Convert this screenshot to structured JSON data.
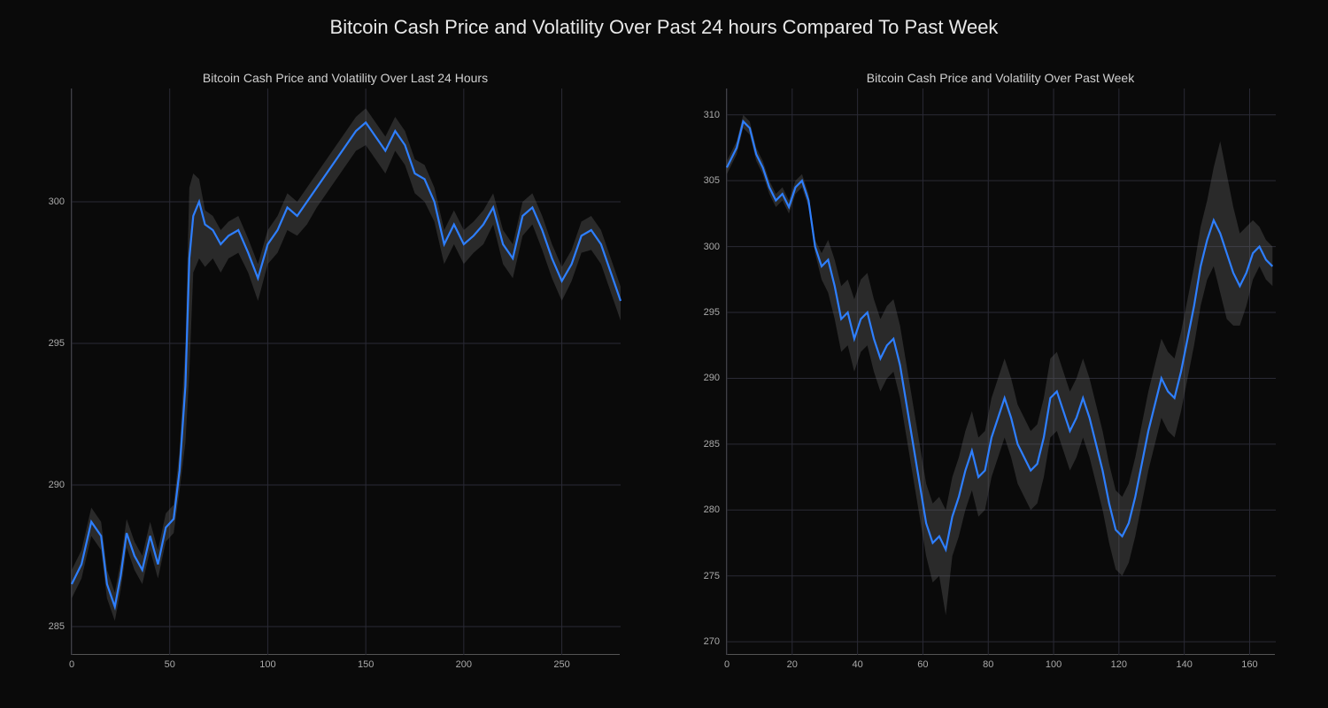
{
  "suptitle": "Bitcoin Cash Price and Volatility Over Past 24 hours Compared To Past Week",
  "suptitle_fontsize": 22,
  "background_color": "#0a0a0a",
  "grid_color": "#2a2a35",
  "line_color": "#2e7fff",
  "band_color": "#666666",
  "band_opacity": 0.35,
  "tick_fontsize": 11,
  "tick_color": "#aaaaaa",
  "left_chart": {
    "type": "line",
    "title": "Bitcoin Cash Price and Volatility Over Last 24 Hours",
    "title_fontsize": 14,
    "xlim": [
      0,
      280
    ],
    "ylim": [
      284,
      304
    ],
    "xticks": [
      0,
      50,
      100,
      150,
      200,
      250
    ],
    "yticks": [
      285,
      290,
      295,
      300
    ],
    "line_width": 2.2,
    "x": [
      0,
      5,
      10,
      15,
      18,
      22,
      25,
      28,
      32,
      36,
      40,
      44,
      48,
      52,
      55,
      58,
      60,
      62,
      65,
      68,
      72,
      76,
      80,
      85,
      90,
      95,
      100,
      105,
      110,
      115,
      120,
      125,
      130,
      135,
      140,
      145,
      150,
      155,
      160,
      165,
      170,
      175,
      180,
      185,
      190,
      195,
      200,
      205,
      210,
      215,
      220,
      225,
      230,
      235,
      240,
      245,
      250,
      255,
      260,
      265,
      270,
      275,
      280
    ],
    "price": [
      286.5,
      287.2,
      288.7,
      288.2,
      286.5,
      285.7,
      286.8,
      288.3,
      287.5,
      287.0,
      288.2,
      287.2,
      288.5,
      288.8,
      290.5,
      293.5,
      298.0,
      299.5,
      300.0,
      299.2,
      299.0,
      298.5,
      298.8,
      299.0,
      298.2,
      297.3,
      298.5,
      299.0,
      299.8,
      299.5,
      300.0,
      300.5,
      301.0,
      301.5,
      302.0,
      302.5,
      302.8,
      302.3,
      301.8,
      302.5,
      302.0,
      301.0,
      300.8,
      300.0,
      298.5,
      299.2,
      298.5,
      298.8,
      299.2,
      299.8,
      298.5,
      298.0,
      299.5,
      299.8,
      299.0,
      298.0,
      297.2,
      297.8,
      298.8,
      299.0,
      298.5,
      297.5,
      296.5
    ],
    "band_upper": [
      287.0,
      287.7,
      289.2,
      288.7,
      287.0,
      286.2,
      287.3,
      288.8,
      288.0,
      287.5,
      288.7,
      287.7,
      289.0,
      289.3,
      291.2,
      295.0,
      300.5,
      301.0,
      300.8,
      299.7,
      299.5,
      299.0,
      299.3,
      299.5,
      298.7,
      297.8,
      299.0,
      299.5,
      300.3,
      300.0,
      300.5,
      301.0,
      301.5,
      302.0,
      302.5,
      303.0,
      303.3,
      302.8,
      302.3,
      303.0,
      302.5,
      301.5,
      301.3,
      300.5,
      299.0,
      299.7,
      299.0,
      299.3,
      299.7,
      300.3,
      299.0,
      298.5,
      300.0,
      300.3,
      299.5,
      298.5,
      297.7,
      298.3,
      299.3,
      299.5,
      299.0,
      298.0,
      297.0
    ],
    "band_lower": [
      286.0,
      286.7,
      288.2,
      287.7,
      286.0,
      285.2,
      286.3,
      287.8,
      287.0,
      286.5,
      287.7,
      286.7,
      288.0,
      288.3,
      289.8,
      291.5,
      294.0,
      297.5,
      298.0,
      297.7,
      298.0,
      297.5,
      298.0,
      298.2,
      297.5,
      296.5,
      297.8,
      298.2,
      299.0,
      298.8,
      299.2,
      299.8,
      300.3,
      300.8,
      301.3,
      301.8,
      302.0,
      301.5,
      301.0,
      301.8,
      301.3,
      300.3,
      300.0,
      299.3,
      297.8,
      298.5,
      297.8,
      298.2,
      298.5,
      299.2,
      297.8,
      297.3,
      298.8,
      299.2,
      298.3,
      297.3,
      296.5,
      297.2,
      298.2,
      298.3,
      297.8,
      296.8,
      295.8
    ]
  },
  "right_chart": {
    "type": "line",
    "title": "Bitcoin Cash Price and Volatility Over Past Week",
    "title_fontsize": 14,
    "xlim": [
      0,
      168
    ],
    "ylim": [
      269,
      312
    ],
    "xticks": [
      0,
      20,
      40,
      60,
      80,
      100,
      120,
      140,
      160
    ],
    "yticks": [
      270,
      275,
      280,
      285,
      290,
      295,
      300,
      305,
      310
    ],
    "line_width": 2.2,
    "x": [
      0,
      3,
      5,
      7,
      9,
      11,
      13,
      15,
      17,
      19,
      21,
      23,
      25,
      27,
      29,
      31,
      33,
      35,
      37,
      39,
      41,
      43,
      45,
      47,
      49,
      51,
      53,
      55,
      57,
      59,
      61,
      63,
      65,
      67,
      69,
      71,
      73,
      75,
      77,
      79,
      81,
      83,
      85,
      87,
      89,
      91,
      93,
      95,
      97,
      99,
      101,
      103,
      105,
      107,
      109,
      111,
      113,
      115,
      117,
      119,
      121,
      123,
      125,
      127,
      129,
      131,
      133,
      135,
      137,
      139,
      141,
      143,
      145,
      147,
      149,
      151,
      153,
      155,
      157,
      159,
      161,
      163,
      165,
      167
    ],
    "price": [
      306.0,
      307.5,
      309.5,
      309.0,
      307.0,
      306.0,
      304.5,
      303.5,
      304.0,
      303.0,
      304.5,
      305.0,
      303.5,
      300.0,
      298.5,
      299.0,
      297.0,
      294.5,
      295.0,
      293.0,
      294.5,
      295.0,
      293.0,
      291.5,
      292.5,
      293.0,
      291.0,
      288.0,
      285.0,
      282.0,
      279.0,
      277.5,
      278.0,
      277.0,
      279.5,
      281.0,
      283.0,
      284.5,
      282.5,
      283.0,
      285.5,
      287.0,
      288.5,
      287.0,
      285.0,
      284.0,
      283.0,
      283.5,
      285.5,
      288.5,
      289.0,
      287.5,
      286.0,
      287.0,
      288.5,
      287.0,
      285.0,
      283.0,
      280.5,
      278.5,
      278.0,
      279.0,
      281.0,
      283.5,
      286.0,
      288.0,
      290.0,
      289.0,
      288.5,
      290.5,
      293.0,
      295.5,
      298.5,
      300.5,
      302.0,
      301.0,
      299.5,
      298.0,
      297.0,
      298.0,
      299.5,
      300.0,
      299.0,
      298.5
    ],
    "band_upper": [
      306.5,
      308.0,
      310.0,
      309.5,
      307.5,
      306.5,
      305.0,
      304.0,
      304.5,
      303.5,
      305.0,
      305.5,
      304.0,
      300.5,
      299.5,
      300.5,
      299.0,
      297.0,
      297.5,
      296.0,
      297.5,
      298.0,
      296.0,
      294.5,
      295.5,
      296.0,
      294.0,
      291.0,
      288.0,
      285.0,
      282.0,
      280.5,
      281.0,
      280.0,
      282.5,
      284.0,
      286.0,
      287.5,
      285.5,
      286.0,
      288.5,
      290.0,
      291.5,
      290.0,
      288.0,
      287.0,
      286.0,
      286.5,
      288.5,
      291.5,
      292.0,
      290.5,
      289.0,
      290.0,
      291.5,
      290.0,
      288.0,
      286.0,
      283.5,
      281.5,
      281.0,
      282.0,
      284.0,
      286.5,
      289.0,
      291.0,
      293.0,
      292.0,
      291.5,
      293.5,
      296.0,
      298.5,
      301.5,
      303.5,
      306.0,
      308.0,
      305.5,
      303.0,
      301.0,
      301.5,
      302.0,
      301.5,
      300.5,
      300.0
    ],
    "band_lower": [
      305.5,
      307.0,
      309.0,
      308.5,
      306.5,
      305.5,
      304.0,
      303.0,
      303.5,
      302.5,
      304.0,
      304.5,
      303.0,
      299.5,
      297.5,
      296.5,
      294.5,
      292.0,
      292.5,
      290.5,
      292.0,
      292.5,
      290.5,
      289.0,
      290.0,
      290.5,
      288.5,
      285.5,
      282.5,
      279.5,
      276.5,
      274.5,
      275.0,
      272.0,
      276.5,
      278.0,
      280.0,
      281.5,
      279.5,
      280.0,
      282.5,
      284.0,
      285.5,
      284.0,
      282.0,
      281.0,
      280.0,
      280.5,
      282.5,
      285.5,
      286.0,
      284.5,
      283.0,
      284.0,
      285.5,
      284.0,
      282.0,
      280.0,
      277.5,
      275.5,
      275.0,
      276.0,
      278.0,
      280.5,
      283.0,
      285.0,
      287.0,
      286.0,
      285.5,
      287.5,
      290.0,
      292.5,
      295.5,
      297.5,
      298.5,
      296.5,
      294.5,
      294.0,
      294.0,
      295.5,
      297.5,
      298.5,
      297.5,
      297.0
    ]
  }
}
